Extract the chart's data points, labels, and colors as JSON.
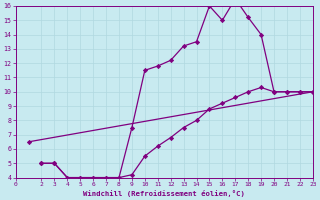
{
  "line1_x": [
    2,
    3,
    4,
    5,
    6,
    7,
    8,
    9,
    10,
    11,
    12,
    13,
    14,
    15,
    16,
    17,
    18,
    19,
    20,
    21,
    22,
    23
  ],
  "line1_y": [
    5.0,
    5.0,
    4.0,
    4.0,
    4.0,
    4.0,
    4.0,
    7.5,
    11.5,
    11.8,
    12.2,
    13.2,
    13.5,
    16.0,
    15.0,
    16.5,
    15.2,
    14.0,
    10.0,
    10.0,
    10.0,
    10.0
  ],
  "line2_x": [
    1,
    23
  ],
  "line2_y": [
    6.5,
    10.0
  ],
  "line3_x": [
    2,
    3,
    4,
    5,
    6,
    7,
    8,
    9,
    10,
    11,
    12,
    13,
    14,
    15,
    16,
    17,
    18,
    19,
    20,
    21,
    22,
    23
  ],
  "line3_y": [
    5.0,
    5.0,
    4.0,
    4.0,
    4.0,
    4.0,
    4.0,
    4.2,
    5.5,
    6.2,
    6.8,
    7.5,
    8.0,
    8.8,
    9.2,
    9.6,
    10.0,
    10.3,
    10.0,
    10.0,
    10.0,
    10.0
  ],
  "color": "#800080",
  "bg_color": "#c8eaf0",
  "grid_color": "#b0d8e0",
  "xlabel": "Windchill (Refroidissement éolien,°C)",
  "xlim": [
    0,
    23
  ],
  "ylim": [
    4,
    16
  ],
  "xticks": [
    0,
    2,
    3,
    4,
    5,
    6,
    7,
    8,
    9,
    10,
    11,
    12,
    13,
    14,
    15,
    16,
    17,
    18,
    19,
    20,
    21,
    22,
    23
  ],
  "yticks": [
    4,
    5,
    6,
    7,
    8,
    9,
    10,
    11,
    12,
    13,
    14,
    15,
    16
  ],
  "marker": "D",
  "markersize": 2.2,
  "linewidth": 0.9,
  "tick_fontsize": 4.5,
  "xlabel_fontsize": 5.2
}
